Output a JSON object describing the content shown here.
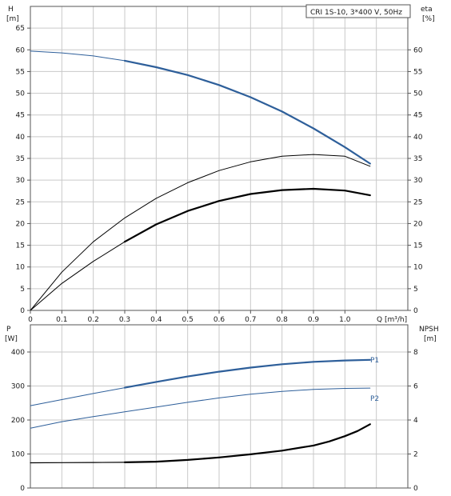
{
  "chart_data": [
    {
      "type": "line",
      "legend_box": "CRI 1S-10, 3*400 V, 50Hz",
      "xlabel": "Q [m³/h]",
      "ylabel_left": [
        "H",
        "[m]"
      ],
      "ylabel_right": [
        "eta",
        "[%]"
      ],
      "xlim": [
        0,
        1.2
      ],
      "ylim_left": [
        0,
        70
      ],
      "ylim_right": [
        0,
        70
      ],
      "x_ticks": [
        "0",
        "0.1",
        "0.2",
        "0.3",
        "0.4",
        "0.5",
        "0.6",
        "0.7",
        "0.8",
        "0.9",
        "1.0"
      ],
      "y_ticks_left": [
        "0",
        "5",
        "10",
        "15",
        "20",
        "25",
        "30",
        "35",
        "40",
        "45",
        "50",
        "55",
        "60",
        "65"
      ],
      "y_ticks_right": [
        "0",
        "5",
        "10",
        "15",
        "20",
        "25",
        "30",
        "35",
        "40",
        "45",
        "50",
        "55",
        "60"
      ],
      "grid": true,
      "series": [
        {
          "role": "head",
          "axis": "left",
          "color": "#2e5f9a",
          "width": 1,
          "x": [
            0,
            0.1,
            0.2,
            0.3,
            0.4,
            0.5,
            0.6,
            0.7,
            0.8,
            0.9,
            1.0,
            1.08
          ],
          "y": [
            59.7,
            59.3,
            58.6,
            57.5,
            56.0,
            54.2,
            51.9,
            49.1,
            45.8,
            41.9,
            37.6,
            33.8
          ]
        },
        {
          "role": "head_operating",
          "axis": "left",
          "color": "#2e5f9a",
          "width": 2.2,
          "x": [
            0.3,
            0.4,
            0.5,
            0.6,
            0.7,
            0.8,
            0.9,
            1.0,
            1.08
          ],
          "y": [
            57.5,
            56.0,
            54.2,
            51.9,
            49.1,
            45.8,
            41.9,
            37.6,
            33.8
          ]
        },
        {
          "role": "eta_pump",
          "axis": "right",
          "color": "#000000",
          "width": 1,
          "x": [
            0,
            0.1,
            0.2,
            0.3,
            0.4,
            0.5,
            0.6,
            0.7,
            0.8,
            0.9,
            1.0,
            1.08
          ],
          "y": [
            0,
            8.8,
            15.8,
            21.3,
            25.8,
            29.4,
            32.2,
            34.2,
            35.5,
            35.9,
            35.5,
            33.2
          ]
        },
        {
          "role": "eta_total",
          "axis": "right",
          "color": "#000000",
          "width": 1,
          "x": [
            0,
            0.1,
            0.2,
            0.3
          ],
          "y": [
            0,
            6.2,
            11.3,
            15.8
          ]
        },
        {
          "role": "eta_total_operating",
          "axis": "right",
          "color": "#000000",
          "width": 2.2,
          "x": [
            0.3,
            0.4,
            0.5,
            0.6,
            0.7,
            0.8,
            0.9,
            1.0,
            1.08
          ],
          "y": [
            15.8,
            19.8,
            22.9,
            25.2,
            26.8,
            27.7,
            28.0,
            27.6,
            26.5
          ]
        }
      ]
    },
    {
      "type": "line",
      "ylabel_left": [
        "P",
        "[W]"
      ],
      "ylabel_right": [
        "NPSH",
        "[m]"
      ],
      "xlim": [
        0,
        1.2
      ],
      "ylim_left": [
        0,
        480
      ],
      "ylim_right": [
        0,
        9.6
      ],
      "y_ticks_left": [
        "0",
        "100",
        "200",
        "300",
        "400"
      ],
      "y_ticks_right": [
        "0",
        "2",
        "4",
        "6",
        "8"
      ],
      "grid": true,
      "series": [
        {
          "name": "P1",
          "axis": "left",
          "color": "#2e5f9a",
          "width": 1,
          "x": [
            0,
            0.1,
            0.2,
            0.3,
            0.4,
            0.5,
            0.6,
            0.7,
            0.8,
            0.9,
            1.0,
            1.08
          ],
          "y": [
            242,
            260,
            278,
            295,
            312,
            328,
            342,
            354,
            364,
            371,
            375,
            377
          ]
        },
        {
          "role": "P1_operating",
          "axis": "left",
          "color": "#2e5f9a",
          "width": 2.2,
          "x": [
            0.3,
            0.4,
            0.5,
            0.6,
            0.7,
            0.8,
            0.9,
            1.0,
            1.08
          ],
          "y": [
            295,
            312,
            328,
            342,
            354,
            364,
            371,
            375,
            377
          ]
        },
        {
          "name": "P2",
          "axis": "left",
          "color": "#2e5f9a",
          "width": 1,
          "x": [
            0,
            0.1,
            0.2,
            0.3,
            0.4,
            0.5,
            0.6,
            0.7,
            0.8,
            0.9,
            1.0,
            1.08
          ],
          "y": [
            176,
            195,
            210,
            224,
            238,
            252,
            265,
            276,
            284,
            290,
            293,
            294
          ]
        },
        {
          "role": "npsh",
          "axis": "right",
          "color": "#000000",
          "width": 1.2,
          "x": [
            0,
            0.1,
            0.2,
            0.3
          ],
          "y": [
            1.48,
            1.49,
            1.5,
            1.51
          ]
        },
        {
          "role": "npsh_operating",
          "axis": "right",
          "color": "#000000",
          "width": 2.2,
          "x": [
            0.3,
            0.4,
            0.5,
            0.6,
            0.7,
            0.8,
            0.9,
            0.95,
            1.0,
            1.04,
            1.08
          ],
          "y": [
            1.51,
            1.55,
            1.65,
            1.8,
            1.98,
            2.2,
            2.5,
            2.74,
            3.05,
            3.35,
            3.75
          ]
        }
      ]
    }
  ]
}
